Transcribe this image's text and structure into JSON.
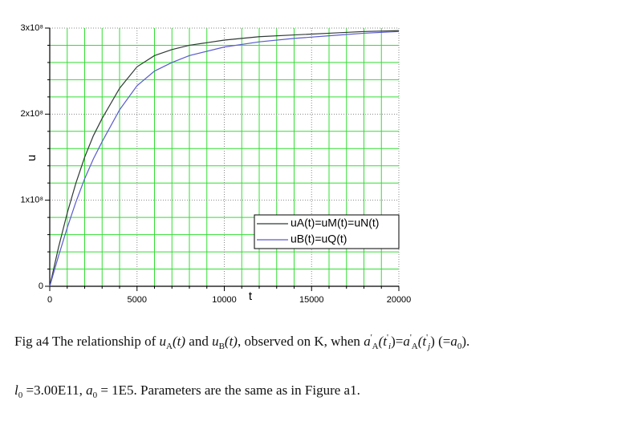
{
  "chart_data": {
    "type": "line",
    "x_label": "t",
    "y_label": "u",
    "x": [
      0,
      500,
      1000,
      1500,
      2000,
      2500,
      3000,
      4000,
      5000,
      6000,
      7000,
      8000,
      10000,
      12000,
      14000,
      16000,
      18000,
      20000
    ],
    "series": [
      {
        "name": "uA(t)=uM(t)=uN(t)",
        "color": "#2f3a36",
        "values": [
          0,
          45000000,
          85000000,
          120000000,
          150000000,
          175000000,
          195000000,
          230000000,
          255000000,
          268000000,
          275000000,
          280000000,
          286000000,
          290000000,
          292000000,
          294000000,
          296000000,
          297000000
        ]
      },
      {
        "name": "uB(t)=uQ(t)",
        "color": "#5a5ad0",
        "values": [
          0,
          35000000,
          68000000,
          98000000,
          125000000,
          148000000,
          168000000,
          205000000,
          233000000,
          250000000,
          260000000,
          268000000,
          278000000,
          284000000,
          288000000,
          291000000,
          294000000,
          296000000
        ]
      }
    ],
    "xlim": [
      0,
      20000
    ],
    "xticks": [
      0,
      5000,
      10000,
      15000,
      20000
    ],
    "ylim": [
      0,
      300000000
    ],
    "yticks": [
      0,
      {
        "value": 100000000,
        "label": "1x10⁸"
      },
      {
        "value": 200000000,
        "label": "2x10⁸"
      },
      {
        "value": 300000000,
        "label": "3x10⁸"
      }
    ],
    "grid": true,
    "minor_grid": true,
    "minor_grid_color": "#33dd33",
    "legend": "lower right"
  },
  "caption": {
    "line1": [
      "Fig a4 The relationship of ",
      "u",
      "A",
      "(t)",
      " and ",
      "u",
      "B",
      "(t)",
      ", observed on K, when ",
      "a",
      "'",
      "A",
      "(t",
      "'",
      "i",
      ")=",
      "a",
      "'",
      "A",
      "(t",
      "'",
      "j",
      ") (=",
      "a",
      "0",
      ")."
    ],
    "line2": [
      "l",
      "0",
      " =3.00E11, ",
      "a",
      "0",
      " = 1E5. Parameters are the same as in Figure a1."
    ]
  }
}
